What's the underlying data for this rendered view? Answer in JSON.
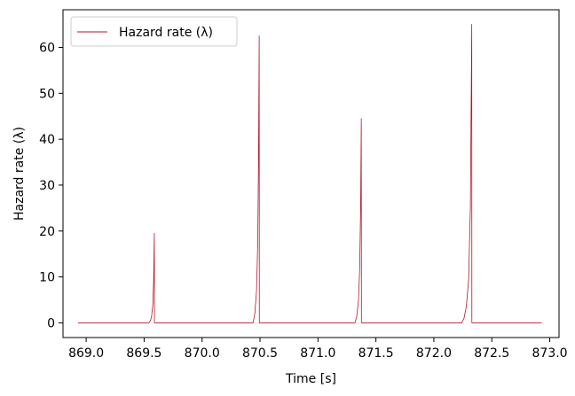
{
  "chart_data": {
    "type": "line",
    "xlabel": "Time [s]",
    "ylabel": "Hazard rate (λ)",
    "xlim": [
      868.8,
      873.08
    ],
    "ylim": [
      -3.2,
      68.2
    ],
    "x_ticks": [
      869.0,
      869.5,
      870.0,
      870.5,
      871.0,
      871.5,
      872.0,
      872.5,
      873.0
    ],
    "x_tick_labels": [
      "869.0",
      "869.5",
      "870.0",
      "870.5",
      "871.0",
      "871.5",
      "872.0",
      "872.5",
      "873.0"
    ],
    "y_ticks": [
      0,
      10,
      20,
      30,
      40,
      50,
      60
    ],
    "y_tick_labels": [
      "0",
      "10",
      "20",
      "30",
      "40",
      "50",
      "60"
    ],
    "grid": false,
    "legend": {
      "position": "top-left",
      "entries": [
        "Hazard rate (λ)"
      ]
    },
    "series": [
      {
        "name": "Hazard rate (λ)",
        "color": "#b2182b",
        "x": [
          868.93,
          869.54,
          869.555,
          869.565,
          869.575,
          869.582,
          869.588,
          869.589,
          869.6,
          870.44,
          870.455,
          870.47,
          870.48,
          870.487,
          870.493,
          870.494,
          870.5,
          871.32,
          871.335,
          871.35,
          871.36,
          871.368,
          871.374,
          871.375,
          871.38,
          872.24,
          872.26,
          872.28,
          872.3,
          872.315,
          872.327,
          872.328,
          872.34,
          872.93
        ],
        "y": [
          0,
          0,
          0.5,
          1.5,
          4,
          9,
          19.5,
          0,
          0,
          0,
          2,
          7,
          17,
          35,
          62.5,
          0,
          0,
          0,
          1.5,
          5,
          12,
          25,
          44.5,
          0,
          0,
          0,
          1,
          3.5,
          9.5,
          25,
          65,
          0,
          0,
          0
        ]
      }
    ]
  }
}
